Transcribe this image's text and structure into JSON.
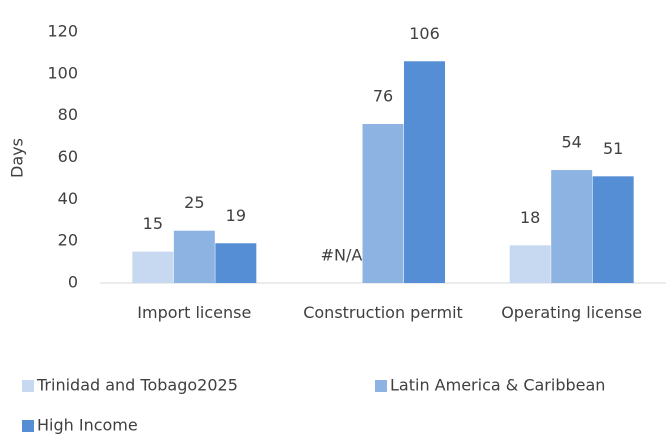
{
  "chart_data": {
    "type": "bar",
    "y_label": "Days",
    "categories": [
      "Import license",
      "Construction permit",
      "Operating license"
    ],
    "series": [
      {
        "name": "Trinidad and Tobago2025",
        "color": "#c6d9f1",
        "values": [
          15,
          null,
          18
        ],
        "value_labels": [
          "15",
          "#N/A",
          "18"
        ]
      },
      {
        "name": "Latin America & Caribbean",
        "color": "#8db3e2",
        "values": [
          25,
          76,
          54
        ]
      },
      {
        "name": "High Income",
        "color": "#558ed5",
        "values": [
          19,
          106,
          51
        ]
      }
    ],
    "ylim": [
      0,
      120
    ],
    "yticks": [
      0,
      20,
      40,
      60,
      80,
      100,
      120
    ],
    "grid": false
  }
}
